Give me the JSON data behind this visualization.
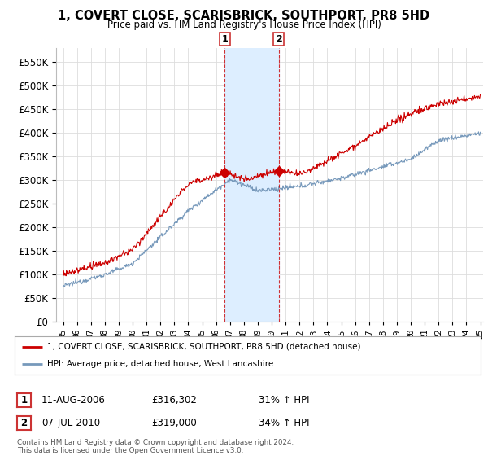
{
  "title": "1, COVERT CLOSE, SCARISBRICK, SOUTHPORT, PR8 5HD",
  "subtitle": "Price paid vs. HM Land Registry's House Price Index (HPI)",
  "red_label": "1, COVERT CLOSE, SCARISBRICK, SOUTHPORT, PR8 5HD (detached house)",
  "blue_label": "HPI: Average price, detached house, West Lancashire",
  "sale1_date": "11-AUG-2006",
  "sale1_price": "£316,302",
  "sale1_hpi": "31% ↑ HPI",
  "sale2_date": "07-JUL-2010",
  "sale2_price": "£319,000",
  "sale2_hpi": "34% ↑ HPI",
  "footer": "Contains HM Land Registry data © Crown copyright and database right 2024.\nThis data is licensed under the Open Government Licence v3.0.",
  "ylim_min": 0,
  "ylim_max": 580000,
  "year_start": 1995,
  "year_end": 2025,
  "red_color": "#cc0000",
  "blue_color": "#7799bb",
  "shade_color": "#ddeeff",
  "marker1_year": 2006.62,
  "marker1_val": 316302,
  "marker2_year": 2010.5,
  "marker2_val": 319000,
  "background_color": "#ffffff",
  "grid_color": "#dddddd"
}
